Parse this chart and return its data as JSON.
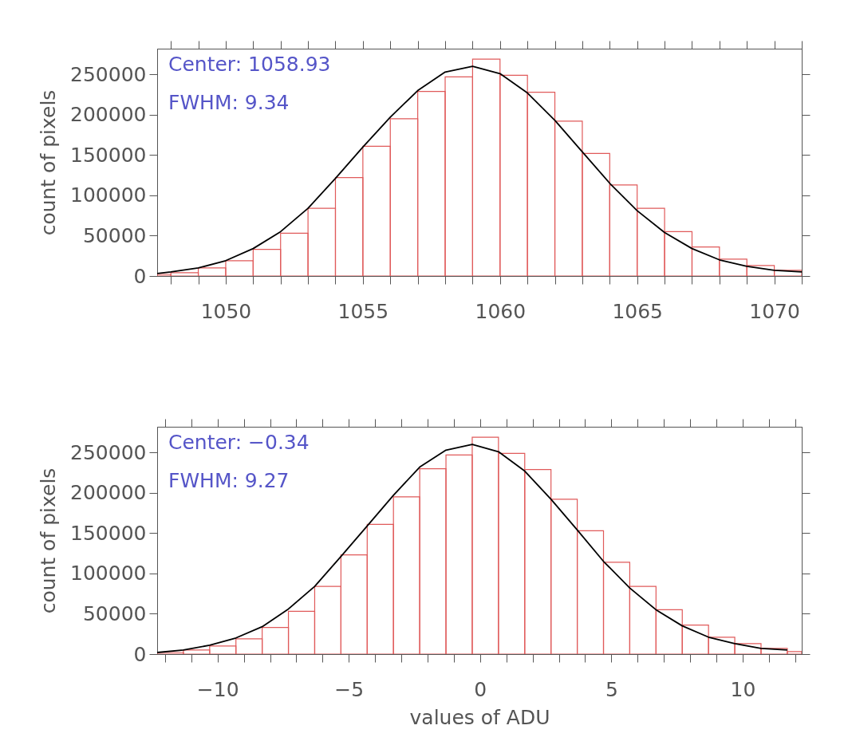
{
  "chart_data": [
    {
      "type": "histogram",
      "ylabel": "count of pixels",
      "annotations": [
        "Center: 1058.93",
        "FWHM: 9.34"
      ],
      "bins": [
        1047.5,
        1048,
        1049,
        1050,
        1051,
        1052,
        1053,
        1054,
        1055,
        1056,
        1057,
        1058,
        1059,
        1060,
        1061,
        1062,
        1063,
        1064,
        1065,
        1066,
        1067,
        1068,
        1069,
        1070,
        1071
      ],
      "series": [
        {
          "color": "#e05a5a",
          "values": [
            2000,
            4000,
            10000,
            19000,
            33000,
            53000,
            84000,
            122000,
            161000,
            195000,
            229000,
            247000,
            269000,
            249000,
            228000,
            192000,
            152000,
            113000,
            84000,
            55000,
            36000,
            21000,
            13000,
            7000
          ]
        },
        {
          "type": "line",
          "color": "#000000",
          "x": [
            1047.5,
            1048,
            1049,
            1050,
            1051,
            1052,
            1053,
            1054,
            1055,
            1056,
            1057,
            1058,
            1059,
            1060,
            1061,
            1062,
            1063,
            1064,
            1065,
            1066,
            1067,
            1068,
            1069,
            1070,
            1071
          ],
          "values": [
            3000,
            5000,
            10000,
            19000,
            34000,
            55000,
            84000,
            121000,
            160000,
            197000,
            230000,
            253000,
            260000,
            251000,
            227000,
            193000,
            154000,
            115000,
            81000,
            54000,
            34000,
            20000,
            12000,
            7000,
            5000
          ]
        }
      ],
      "xlim": [
        1047.5,
        1071
      ],
      "ylim": [
        0,
        282000
      ],
      "xticks": [
        {
          "value": 1048,
          "label": null
        },
        {
          "value": 1049,
          "label": null
        },
        1050,
        {
          "value": 1051,
          "label": null
        },
        {
          "value": 1052,
          "label": null
        },
        {
          "value": 1053,
          "label": null
        },
        {
          "value": 1054,
          "label": null
        },
        1055,
        {
          "value": 1056,
          "label": null
        },
        {
          "value": 1057,
          "label": null
        },
        {
          "value": 1058,
          "label": null
        },
        {
          "value": 1059,
          "label": null
        },
        1060,
        {
          "value": 1061,
          "label": null
        },
        {
          "value": 1062,
          "label": null
        },
        {
          "value": 1063,
          "label": null
        },
        {
          "value": 1064,
          "label": null
        },
        1065,
        {
          "value": 1066,
          "label": null
        },
        {
          "value": 1067,
          "label": null
        },
        {
          "value": 1068,
          "label": null
        },
        {
          "value": 1069,
          "label": null
        },
        1070,
        {
          "value": 1071,
          "label": null
        }
      ],
      "yticks": [
        0,
        50000,
        100000,
        150000,
        200000,
        250000
      ],
      "grid": false
    },
    {
      "type": "histogram",
      "xlabel": "values of ADU",
      "ylabel": "count of pixels",
      "annotations": [
        "Center: −0.34",
        "FWHM: 9.27"
      ],
      "bins": [
        -12.3,
        -11.3,
        -10.3,
        -9.3,
        -8.3,
        -7.3,
        -6.3,
        -5.3,
        -4.3,
        -3.3,
        -2.3,
        -1.3,
        -0.3,
        0.7,
        1.7,
        2.7,
        3.7,
        4.7,
        5.7,
        6.7,
        7.7,
        8.7,
        9.7,
        10.7,
        11.7,
        12.25
      ],
      "series": [
        {
          "color": "#e05a5a",
          "values": [
            2000,
            5000,
            10000,
            19000,
            33000,
            53000,
            84000,
            123000,
            161000,
            195000,
            230000,
            247000,
            269000,
            249000,
            229000,
            192000,
            153000,
            114000,
            84000,
            55000,
            36000,
            21000,
            13000,
            7000,
            3000
          ]
        },
        {
          "type": "line",
          "color": "#000000",
          "x": [
            -12.3,
            -11.3,
            -10.3,
            -9.3,
            -8.3,
            -7.3,
            -6.3,
            -5.3,
            -4.3,
            -3.3,
            -2.3,
            -1.3,
            -0.3,
            0.7,
            1.7,
            2.7,
            3.7,
            4.7,
            5.7,
            6.7,
            7.7,
            8.7,
            9.7,
            10.7,
            11.7
          ],
          "values": [
            2000,
            5000,
            11000,
            20000,
            34000,
            56000,
            84000,
            121000,
            159000,
            197000,
            232000,
            253000,
            260000,
            251000,
            227000,
            192000,
            154000,
            115000,
            82000,
            55000,
            35000,
            21000,
            13000,
            7000,
            5000
          ]
        }
      ],
      "xlim": [
        -12.3,
        12.25
      ],
      "ylim": [
        0,
        282000
      ],
      "xticks": [
        {
          "value": -12,
          "label": null
        },
        {
          "value": -11,
          "label": null
        },
        {
          "value": -10,
          "label": "−10"
        },
        {
          "value": -9,
          "label": null
        },
        {
          "value": -8,
          "label": null
        },
        {
          "value": -7,
          "label": null
        },
        {
          "value": -6,
          "label": null
        },
        {
          "value": -5,
          "label": "−5"
        },
        {
          "value": -4,
          "label": null
        },
        {
          "value": -3,
          "label": null
        },
        {
          "value": -2,
          "label": null
        },
        {
          "value": -1,
          "label": null
        },
        0,
        {
          "value": 1,
          "label": null
        },
        {
          "value": 2,
          "label": null
        },
        {
          "value": 3,
          "label": null
        },
        {
          "value": 4,
          "label": null
        },
        5,
        {
          "value": 6,
          "label": null
        },
        {
          "value": 7,
          "label": null
        },
        {
          "value": 8,
          "label": null
        },
        {
          "value": 9,
          "label": null
        },
        10,
        {
          "value": 11,
          "label": null
        },
        {
          "value": 12,
          "label": null
        }
      ],
      "yticks": [
        0,
        50000,
        100000,
        150000,
        200000,
        250000
      ],
      "grid": false
    }
  ]
}
